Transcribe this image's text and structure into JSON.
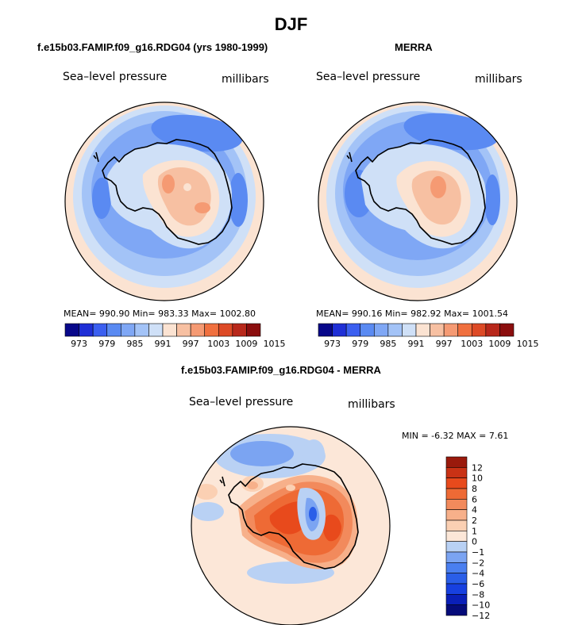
{
  "title": "DJF",
  "colors": {
    "pressure_scale": [
      "#08088a",
      "#1f2fd6",
      "#3b5ff0",
      "#5a8af2",
      "#7fa7f5",
      "#a3c3f7",
      "#cfe0f7",
      "#fbe3d2",
      "#f7c0a2",
      "#f59a73",
      "#f0703f",
      "#dd4a26",
      "#b8281b",
      "#8b0e0e"
    ],
    "diff_scale": [
      "#050b7a",
      "#0a1fb8",
      "#1740e0",
      "#2a5ee8",
      "#4a7ff0",
      "#7ba4f2",
      "#b9d1f4",
      "#fce7d8",
      "#fbd0b3",
      "#f7b08a",
      "#f28a5c",
      "#ee6a35",
      "#e84a1c",
      "#c93215",
      "#9a1a0c"
    ],
    "coastline": "#000000"
  },
  "panels": [
    {
      "subtitle": "f.e15b03.FAMIP.f09_g16.RDG04 (yrs 1980-1999)",
      "left_label": "Sea–level pressure",
      "right_label": "millibars",
      "stats": "MEAN= 990.90   Min= 983.33   Max= 1002.80"
    },
    {
      "subtitle": "MERRA",
      "left_label": "Sea–level pressure",
      "right_label": "millibars",
      "stats": "MEAN= 990.16   Min= 982.92   Max= 1001.54"
    },
    {
      "subtitle": "f.e15b03.FAMIP.f09_g16.RDG04 - MERRA",
      "left_label": "Sea–level pressure",
      "right_label": "millibars",
      "stats": "MIN =   -6.32  MAX =    7.61"
    }
  ],
  "chart_data": [
    {
      "type": "heatmap",
      "title": "f.e15b03.FAMIP.f09_g16.RDG04 (yrs 1980-1999)",
      "variable": "Sea-level pressure",
      "units": "millibars",
      "projection": "polar stereographic (south)",
      "mean": 990.9,
      "min": 983.33,
      "max": 1002.8,
      "colorbar_levels": [
        973,
        976,
        979,
        982,
        985,
        988,
        991,
        994,
        997,
        1000,
        1003,
        1006,
        1009,
        1012,
        1015
      ],
      "colorbar_tick_labels": [
        "973",
        "979",
        "985",
        "991",
        "997",
        "1003",
        "1009",
        "1015"
      ]
    },
    {
      "type": "heatmap",
      "title": "MERRA",
      "variable": "Sea-level pressure",
      "units": "millibars",
      "projection": "polar stereographic (south)",
      "mean": 990.16,
      "min": 982.92,
      "max": 1001.54,
      "colorbar_levels": [
        973,
        976,
        979,
        982,
        985,
        988,
        991,
        994,
        997,
        1000,
        1003,
        1006,
        1009,
        1012,
        1015
      ],
      "colorbar_tick_labels": [
        "973",
        "979",
        "985",
        "991",
        "997",
        "1003",
        "1009",
        "1015"
      ]
    },
    {
      "type": "heatmap",
      "title": "f.e15b03.FAMIP.f09_g16.RDG04 - MERRA",
      "variable": "Sea-level pressure",
      "units": "millibars",
      "projection": "polar stereographic (south)",
      "min": -6.32,
      "max": 7.61,
      "colorbar_levels": [
        -12,
        -10,
        -8,
        -6,
        -4,
        -2,
        -1,
        0,
        1,
        2,
        4,
        6,
        8,
        10,
        12
      ],
      "colorbar_tick_labels": [
        "12",
        "10",
        "8",
        "6",
        "4",
        "2",
        "1",
        "0",
        "−1",
        "−2",
        "−4",
        "−6",
        "−8",
        "−10",
        "−12"
      ]
    }
  ]
}
